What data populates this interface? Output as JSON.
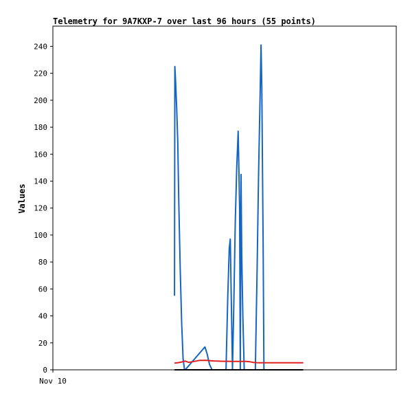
{
  "chart_data": {
    "type": "line",
    "title": "Telemetry for 9A7KXP-7 over last 96 hours (55 points)",
    "xlabel": "",
    "ylabel": "Values",
    "x_tick_labels": [
      "Nov 10"
    ],
    "ylim": [
      0,
      255
    ],
    "yticks": [
      0,
      20,
      40,
      60,
      80,
      100,
      120,
      140,
      160,
      180,
      200,
      220,
      240
    ],
    "xlim": [
      0,
      96
    ],
    "grid": false,
    "series": [
      {
        "color": "#1565c0",
        "x": [
          34.0,
          34.1,
          34.3,
          34.6,
          34.9,
          35.2,
          35.6,
          36.0,
          36.4,
          36.8,
          37.0,
          42.5,
          43.1,
          43.8,
          44.5,
          44.6,
          48.4,
          48.9,
          49.3,
          49.6,
          50.2,
          50.6,
          51.0,
          51.4,
          51.8,
          52.2,
          52.4,
          52.6,
          52.8,
          53.1,
          53.5,
          56.6,
          57.1,
          57.5,
          57.9,
          58.2,
          58.4,
          58.8,
          59.0
        ],
        "y": [
          55,
          225,
          215,
          195,
          170,
          125,
          75,
          35,
          8,
          0,
          0,
          17,
          12,
          4,
          0,
          0,
          0,
          55,
          90,
          97,
          0,
          50,
          110,
          150,
          177,
          120,
          0,
          145,
          85,
          40,
          0,
          0,
          75,
          145,
          200,
          241,
          210,
          90,
          0
        ]
      },
      {
        "color": "#e02020",
        "x": [
          34.0,
          35.0,
          36.0,
          37.0,
          38.0,
          39.0,
          40.0,
          41.0,
          42.0,
          43.0,
          44.0,
          45.0,
          46.0,
          47.0,
          48.0,
          49.0,
          50.0,
          51.0,
          52.0,
          53.0,
          54.0,
          55.0,
          56.0,
          57.0,
          58.0,
          59.0,
          60.0,
          61.0,
          62.0,
          63.0,
          64.0,
          65.0,
          66.0,
          67.0,
          68.0,
          69.0,
          70.0
        ],
        "y": [
          5,
          5.3,
          5.8,
          6.5,
          5.5,
          6.0,
          6.5,
          7.0,
          7.0,
          7.0,
          6.8,
          6.6,
          6.5,
          6.4,
          6.3,
          6.3,
          6.2,
          6.2,
          6.2,
          6.2,
          6.2,
          6.0,
          5.5,
          5.3,
          5.2,
          5.2,
          5.2,
          5.2,
          5.2,
          5.2,
          5.2,
          5.2,
          5.2,
          5.2,
          5.2,
          5.2,
          5.2
        ]
      },
      {
        "color": "#000000",
        "x": [
          34.0,
          70.0
        ],
        "y": [
          0,
          0
        ]
      }
    ]
  }
}
